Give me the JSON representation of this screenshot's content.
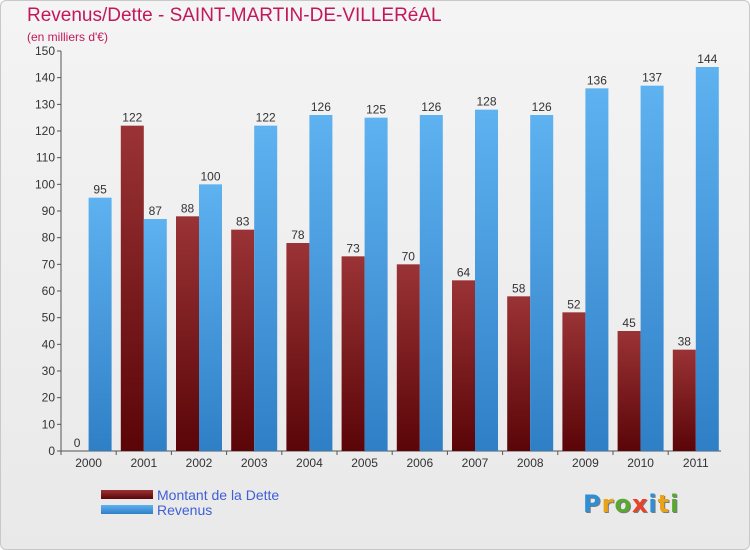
{
  "header": {
    "title": "Revenus/Dette - SAINT-MARTIN-DE-VILLERéAL",
    "subtitle": "(en milliers d'€)"
  },
  "chart_data": {
    "type": "bar",
    "categories": [
      "2000",
      "2001",
      "2002",
      "2003",
      "2004",
      "2005",
      "2006",
      "2007",
      "2008",
      "2009",
      "2010",
      "2011"
    ],
    "series": [
      {
        "name": "Montant de la Dette",
        "color": "#6e0e10",
        "values": [
          0,
          122,
          88,
          83,
          78,
          73,
          70,
          64,
          58,
          52,
          45,
          38
        ]
      },
      {
        "name": "Revenus",
        "color": "#4aa3e6",
        "values": [
          95,
          87,
          100,
          122,
          126,
          125,
          126,
          128,
          126,
          136,
          137,
          144
        ]
      }
    ],
    "ylim": [
      0,
      150
    ],
    "yticks": [
      0,
      10,
      20,
      30,
      40,
      50,
      60,
      70,
      80,
      90,
      100,
      110,
      120,
      130,
      140,
      150
    ],
    "grid": false,
    "legend_position": "bottom-left"
  },
  "legend": {
    "items": [
      {
        "label": "Montant de la Dette",
        "color": "#6e0e10"
      },
      {
        "label": "Revenus",
        "color": "#4aa3e6"
      }
    ]
  },
  "logo": {
    "text": "Proxiti",
    "letters": [
      "P",
      "r",
      "o",
      "x",
      "i",
      "t",
      "i"
    ],
    "colors": [
      "#2e8fd6",
      "#e8a317",
      "#5aa832",
      "#e8432a",
      "#2e8fd6",
      "#e8a317",
      "#5aa832"
    ]
  }
}
